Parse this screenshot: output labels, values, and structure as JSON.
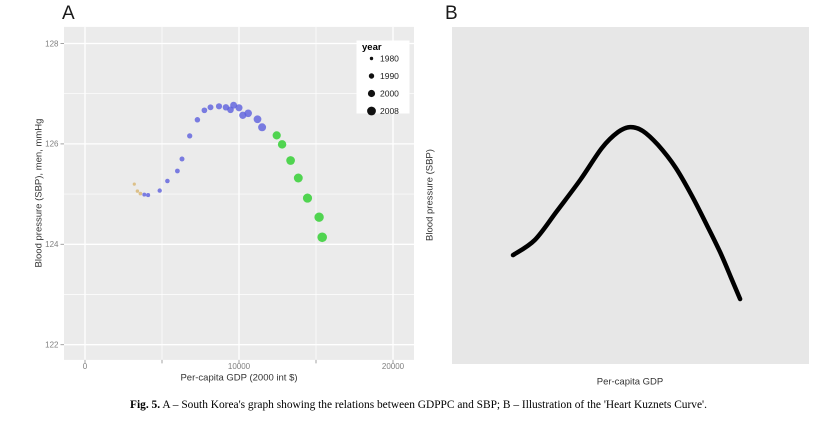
{
  "figure": {
    "panel_a_label": "A",
    "panel_b_label": "B",
    "caption": {
      "prefix": "Fig. 5.",
      "text": " A – South Korea's graph showing the relations between GDPPC and SBP; B – Illustration of the 'Heart Kuznets Curve'."
    }
  },
  "colors": {
    "panel_a_bg": "#EBEBEB",
    "panel_b_bg": "#E7E7E7",
    "grid_major": "#FFFFFF",
    "grid_minor": "#FFFFFF",
    "tick_mark": "#999999",
    "tick_label": "#7F7F7F",
    "axis_title": "#333333",
    "legend_bg": "#FFFFFF",
    "legend_dot": "#111111",
    "point_early": "#D9B878",
    "point_mid": "#5C5FDD",
    "point_late": "#3FD23F",
    "curve": "#000000"
  },
  "chart_data": [
    {
      "panel": "A",
      "type": "scatter",
      "description": "South Korea: systolic blood pressure of men vs per-capita GDP, annual points 1980-2008",
      "xlabel": "Per-capita GDP (2000 int $)",
      "ylabel": "Blood pressure (SBP), men, mmHg",
      "xlim": [
        -1400,
        21400
      ],
      "ylim": [
        121.7,
        128.33
      ],
      "grid": true,
      "x_major_ticks": [
        0,
        10000,
        20000
      ],
      "x_tick_labels": [
        "0",
        "10000",
        "20000"
      ],
      "x_minor_ticks": [
        5000,
        15000
      ],
      "y_major_ticks": [
        128,
        126,
        124,
        122
      ],
      "y_tick_labels": [
        "128",
        "126",
        "124",
        "122"
      ],
      "y_minor_ticks": [
        127,
        125,
        123
      ],
      "legend": {
        "title": "year",
        "position": "top-right-inside",
        "entries": [
          {
            "label": "1980",
            "radius": 1.7
          },
          {
            "label": "1990",
            "radius": 2.7
          },
          {
            "label": "2000",
            "radius": 3.6
          },
          {
            "label": "2008",
            "radius": 4.4
          }
        ]
      },
      "size_encoding": "point size grows with year",
      "color_groups": {
        "early": "1980-1982 tan",
        "mid": "1983-2001 blue",
        "late": "2002-2008 green"
      },
      "points": [
        {
          "year": 1980,
          "gdp": 3200,
          "sbp": 125.2,
          "group": "early"
        },
        {
          "year": 1981,
          "gdp": 3400,
          "sbp": 125.06,
          "group": "early"
        },
        {
          "year": 1982,
          "gdp": 3600,
          "sbp": 125.01,
          "group": "early"
        },
        {
          "year": 1983,
          "gdp": 3850,
          "sbp": 124.99,
          "group": "mid"
        },
        {
          "year": 1984,
          "gdp": 4100,
          "sbp": 124.98,
          "group": "mid"
        },
        {
          "year": 1985,
          "gdp": 4850,
          "sbp": 125.07,
          "group": "mid"
        },
        {
          "year": 1986,
          "gdp": 5350,
          "sbp": 125.26,
          "group": "mid"
        },
        {
          "year": 1987,
          "gdp": 6000,
          "sbp": 125.46,
          "group": "mid"
        },
        {
          "year": 1988,
          "gdp": 6300,
          "sbp": 125.7,
          "group": "mid"
        },
        {
          "year": 1989,
          "gdp": 6800,
          "sbp": 126.16,
          "group": "mid"
        },
        {
          "year": 1990,
          "gdp": 7300,
          "sbp": 126.48,
          "group": "mid"
        },
        {
          "year": 1991,
          "gdp": 7750,
          "sbp": 126.67,
          "group": "mid"
        },
        {
          "year": 1992,
          "gdp": 8150,
          "sbp": 126.73,
          "group": "mid"
        },
        {
          "year": 1993,
          "gdp": 8700,
          "sbp": 126.75,
          "group": "mid"
        },
        {
          "year": 1994,
          "gdp": 9150,
          "sbp": 126.73,
          "group": "mid"
        },
        {
          "year": 1995,
          "gdp": 9450,
          "sbp": 126.68,
          "group": "mid"
        },
        {
          "year": 1996,
          "gdp": 9650,
          "sbp": 126.77,
          "group": "mid"
        },
        {
          "year": 1997,
          "gdp": 10000,
          "sbp": 126.72,
          "group": "mid"
        },
        {
          "year": 1998,
          "gdp": 10250,
          "sbp": 126.57,
          "group": "mid"
        },
        {
          "year": 1999,
          "gdp": 10600,
          "sbp": 126.61,
          "group": "mid"
        },
        {
          "year": 2000,
          "gdp": 11200,
          "sbp": 126.49,
          "group": "mid"
        },
        {
          "year": 2001,
          "gdp": 11500,
          "sbp": 126.33,
          "group": "mid"
        },
        {
          "year": 2002,
          "gdp": 12450,
          "sbp": 126.17,
          "group": "late"
        },
        {
          "year": 2003,
          "gdp": 12800,
          "sbp": 125.99,
          "group": "late"
        },
        {
          "year": 2004,
          "gdp": 13350,
          "sbp": 125.67,
          "group": "late"
        },
        {
          "year": 2005,
          "gdp": 13850,
          "sbp": 125.32,
          "group": "late"
        },
        {
          "year": 2006,
          "gdp": 14450,
          "sbp": 124.92,
          "group": "late"
        },
        {
          "year": 2007,
          "gdp": 15200,
          "sbp": 124.54,
          "group": "late"
        },
        {
          "year": 2008,
          "gdp": 15400,
          "sbp": 124.14,
          "group": "late"
        }
      ]
    },
    {
      "panel": "B",
      "type": "line",
      "description": "Illustration of the Heart Kuznets Curve: inverted-U relation of blood pressure vs per-capita GDP",
      "xlabel": "Per-capita GDP",
      "ylabel": "Blood pressure (SBP)",
      "grid": false,
      "axes_values_shown": false,
      "curve_points_norm": [
        [
          0.171,
          0.677
        ],
        [
          0.232,
          0.632
        ],
        [
          0.294,
          0.546
        ],
        [
          0.359,
          0.454
        ],
        [
          0.42,
          0.359
        ],
        [
          0.465,
          0.312
        ],
        [
          0.499,
          0.297
        ],
        [
          0.535,
          0.309
        ],
        [
          0.577,
          0.35
        ],
        [
          0.625,
          0.415
        ],
        [
          0.672,
          0.501
        ],
        [
          0.714,
          0.588
        ],
        [
          0.751,
          0.668
        ],
        [
          0.781,
          0.742
        ],
        [
          0.807,
          0.807
        ]
      ]
    }
  ]
}
